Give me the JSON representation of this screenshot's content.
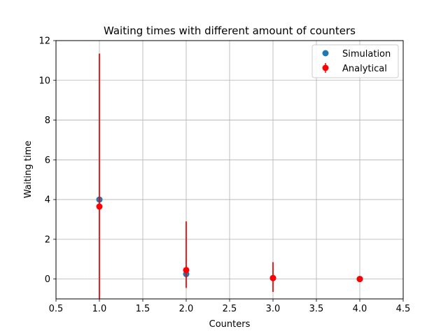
{
  "chart_data": {
    "type": "scatter",
    "title": "Waiting times with different amount of counters",
    "xlabel": "Counters",
    "ylabel": "Waiting time",
    "xlim": [
      0.5,
      4.5
    ],
    "ylim": [
      -1,
      12
    ],
    "xticks": [
      "0.5",
      "1.0",
      "1.5",
      "2.0",
      "2.5",
      "3.0",
      "3.5",
      "4.0",
      "4.5"
    ],
    "yticks": [
      "0",
      "2",
      "4",
      "6",
      "8",
      "10",
      "12"
    ],
    "grid": true,
    "legend_position": "top-right",
    "series": [
      {
        "name": "Simulation",
        "kind": "scatter",
        "color": "#1f77b4",
        "x": [
          1,
          2,
          3,
          4
        ],
        "y": [
          4.0,
          0.25,
          0.05,
          0.0
        ]
      },
      {
        "name": "Analytical",
        "kind": "errorbar",
        "color": "#ff0000",
        "x": [
          1,
          2,
          3,
          4
        ],
        "y": [
          3.65,
          0.45,
          0.05,
          0.0
        ],
        "yerr_low": [
          4.95,
          0.9,
          0.7,
          0.0
        ],
        "yerr_high": [
          7.7,
          2.45,
          0.8,
          0.0
        ]
      }
    ]
  }
}
